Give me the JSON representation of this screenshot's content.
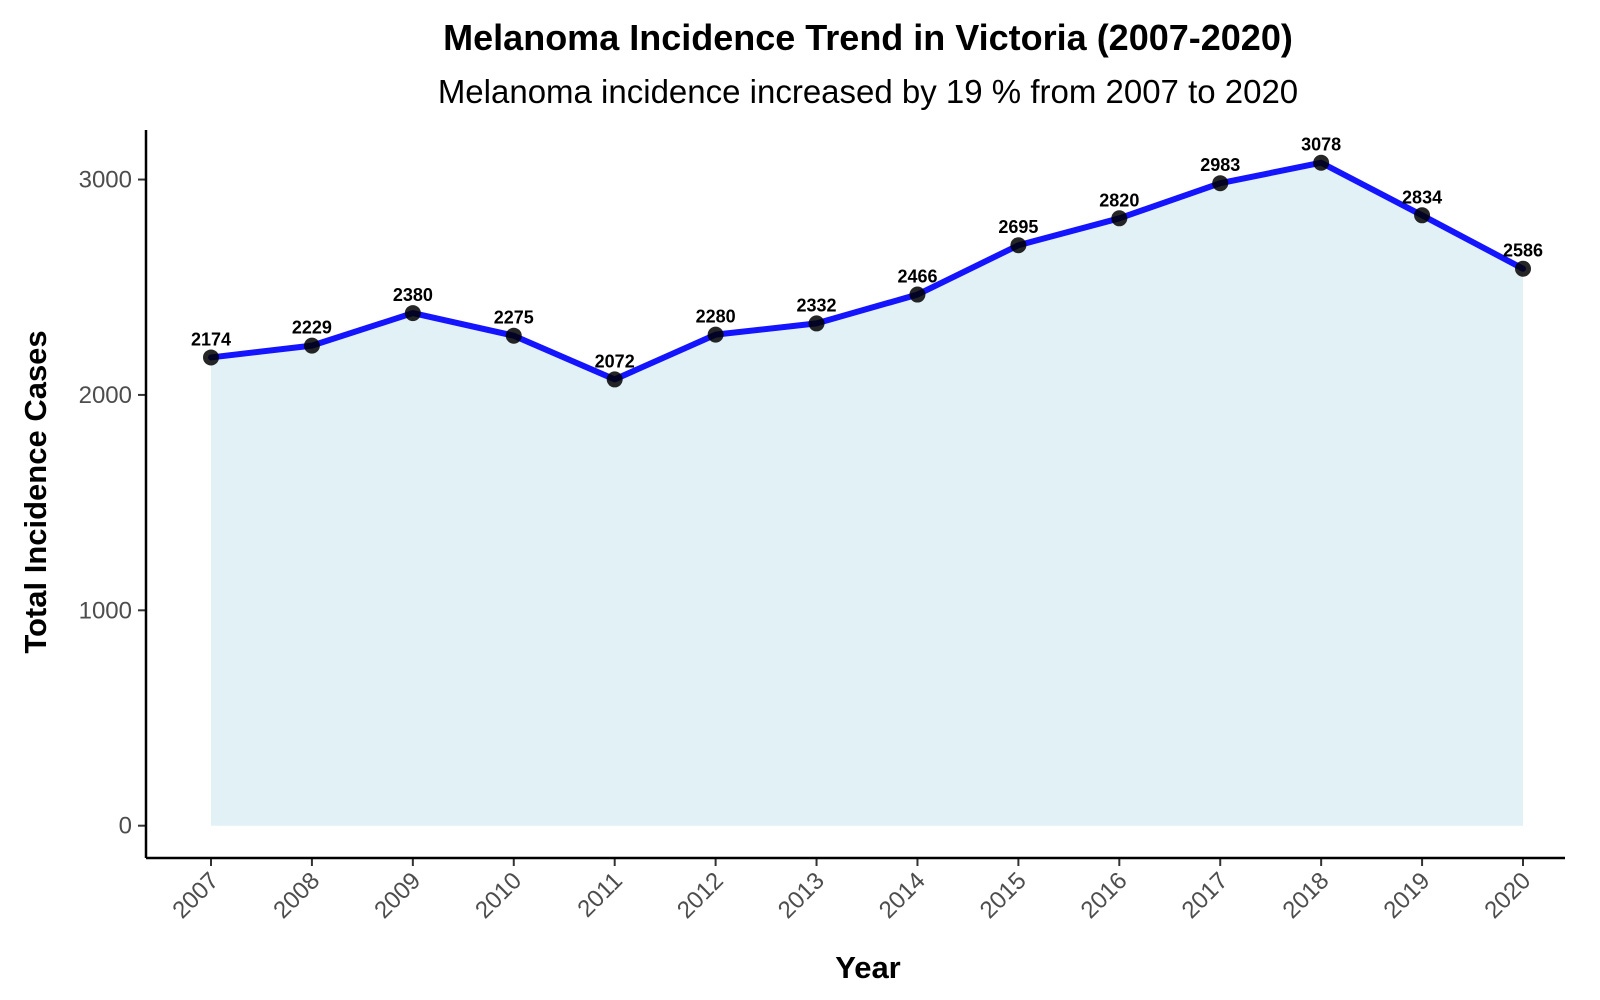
{
  "chart_data": {
    "type": "area",
    "title": "Melanoma Incidence Trend in Victoria (2007-2020)",
    "subtitle": "Melanoma incidence increased by 19 % from 2007 to 2020",
    "xlabel": "Year",
    "ylabel": "Total Incidence Cases",
    "categories": [
      "2007",
      "2008",
      "2009",
      "2010",
      "2011",
      "2012",
      "2013",
      "2014",
      "2015",
      "2016",
      "2017",
      "2018",
      "2019",
      "2020"
    ],
    "series": [
      {
        "name": "Total Incidence Cases",
        "values": [
          2174,
          2229,
          2380,
          2275,
          2072,
          2280,
          2332,
          2466,
          2695,
          2820,
          2983,
          3078,
          2834,
          2586
        ]
      }
    ],
    "ylim": [
      -150,
      3230
    ],
    "yticks": [
      0,
      1000,
      2000,
      3000
    ],
    "grid": false,
    "legend": "none",
    "colors": {
      "line": "#1414ff",
      "fill": "#add8e6",
      "point": "#000000",
      "axis": "#000000"
    }
  }
}
